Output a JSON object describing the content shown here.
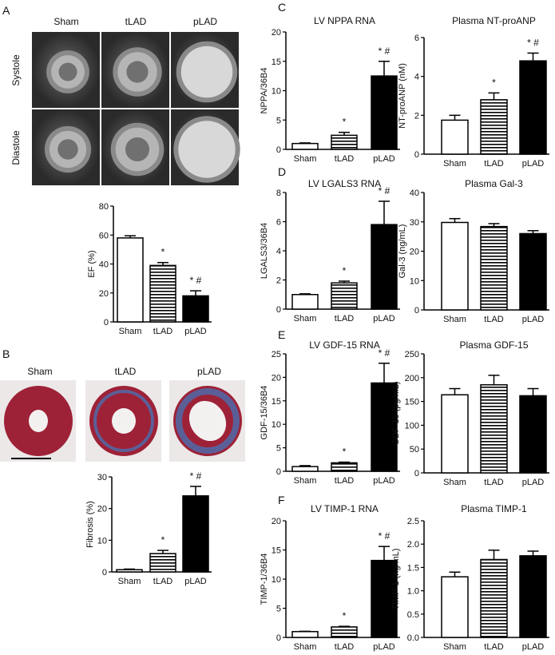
{
  "panel_letters": [
    "A",
    "B",
    "C",
    "D",
    "E",
    "F"
  ],
  "panel_a": {
    "columns": [
      "Sham",
      "tLAD",
      "pLAD"
    ],
    "rows": [
      "Systole",
      "Diastole"
    ]
  },
  "panel_b": {
    "columns": [
      "Sham",
      "tLAD",
      "pLAD"
    ]
  },
  "colors": {
    "sham": "#ffffff",
    "tlad_stripes": "#000000",
    "plad": "#000000",
    "mri_bg": "#3a3a3a",
    "tissue_red": "#9e2237",
    "fibrosis_blue": "#4a6fb0"
  },
  "chart_data": [
    {
      "type": "bar",
      "panel": "A",
      "title": "",
      "ylabel": "EF (%)",
      "ylim": [
        0,
        80
      ],
      "yticks": [
        "0",
        "20",
        "40",
        "60",
        "80"
      ],
      "categories": [
        "Sham",
        "tLAD",
        "pLAD"
      ],
      "values": [
        58,
        39,
        18
      ],
      "errors": [
        1.5,
        2,
        3.5
      ],
      "annotations": [
        "",
        "*",
        "* #"
      ]
    },
    {
      "type": "bar",
      "panel": "B",
      "title": "",
      "ylabel": "Fibrosis (%)",
      "ylim": [
        0,
        30
      ],
      "yticks": [
        "0",
        "10",
        "20",
        "30"
      ],
      "categories": [
        "Sham",
        "tLAD",
        "pLAD"
      ],
      "values": [
        0.7,
        5.8,
        24
      ],
      "errors": [
        0.2,
        1,
        3
      ],
      "annotations": [
        "",
        "*",
        "* #"
      ]
    },
    {
      "type": "bar",
      "panel": "C",
      "title": "LV NPPA RNA",
      "ylabel": "NPPA/36B4",
      "ylim": [
        0,
        20
      ],
      "yticks": [
        "0",
        "5",
        "10",
        "15",
        "20"
      ],
      "categories": [
        "Sham",
        "tLAD",
        "pLAD"
      ],
      "values": [
        1.0,
        2.4,
        12.5
      ],
      "errors": [
        0.1,
        0.5,
        2.5
      ],
      "annotations": [
        "",
        "*",
        "* #"
      ]
    },
    {
      "type": "bar",
      "panel": "C",
      "title": "Plasma NT-proANP",
      "ylabel": "NT-proANP (nM)",
      "ylim": [
        0,
        6
      ],
      "yticks": [
        "0",
        "2",
        "4",
        "6"
      ],
      "categories": [
        "Sham",
        "tLAD",
        "pLAD"
      ],
      "values": [
        1.75,
        2.8,
        4.8
      ],
      "errors": [
        0.25,
        0.35,
        0.4
      ],
      "annotations": [
        "",
        "*",
        "* #"
      ]
    },
    {
      "type": "bar",
      "panel": "D",
      "title": "LV  LGALS3 RNA",
      "ylabel": "LGALS3/36B4",
      "ylim": [
        0,
        8
      ],
      "yticks": [
        "0",
        "2",
        "4",
        "6",
        "8"
      ],
      "categories": [
        "Sham",
        "tLAD",
        "pLAD"
      ],
      "values": [
        1.0,
        1.8,
        5.8
      ],
      "errors": [
        0.05,
        0.12,
        1.6
      ],
      "annotations": [
        "",
        "*",
        "* #"
      ]
    },
    {
      "type": "bar",
      "panel": "D",
      "title": "Plasma Gal-3",
      "ylabel": "Gal-3 (ng/mL)",
      "ylim": [
        0,
        40
      ],
      "yticks": [
        "0",
        "10",
        "20",
        "30",
        "40"
      ],
      "categories": [
        "Sham",
        "tLAD",
        "pLAD"
      ],
      "values": [
        29.8,
        28.4,
        26
      ],
      "errors": [
        1.3,
        1,
        1
      ],
      "annotations": [
        "",
        "",
        ""
      ]
    },
    {
      "type": "bar",
      "panel": "E",
      "title": "LV GDF-15 RNA",
      "ylabel": "GDF-15/36B4",
      "ylim": [
        0,
        25
      ],
      "yticks": [
        "0",
        "5",
        "10",
        "15",
        "20",
        "25"
      ],
      "categories": [
        "Sham",
        "tLAD",
        "pLAD"
      ],
      "values": [
        1.0,
        1.8,
        18.8
      ],
      "errors": [
        0.2,
        0.15,
        4.2
      ],
      "annotations": [
        "",
        "*",
        "* #"
      ]
    },
    {
      "type": "bar",
      "panel": "E",
      "title": "Plasma GDF-15",
      "ylabel": "GDF-15 (pg/mL)",
      "ylim": [
        0,
        250
      ],
      "yticks": [
        "0",
        "50",
        "100",
        "150",
        "200",
        "250"
      ],
      "categories": [
        "Sham",
        "tLAD",
        "pLAD"
      ],
      "values": [
        164,
        185,
        162
      ],
      "errors": [
        13,
        20,
        15
      ],
      "annotations": [
        "",
        "",
        ""
      ]
    },
    {
      "type": "bar",
      "panel": "F",
      "title": "LV TIMP-1 RNA",
      "ylabel": "TIMP-1/36B4",
      "ylim": [
        0,
        20
      ],
      "yticks": [
        "0",
        "5",
        "10",
        "15",
        "20"
      ],
      "categories": [
        "Sham",
        "tLAD",
        "pLAD"
      ],
      "values": [
        1.0,
        1.8,
        13.2
      ],
      "errors": [
        0.05,
        0.1,
        2.4
      ],
      "annotations": [
        "",
        "*",
        "* #"
      ]
    },
    {
      "type": "bar",
      "panel": "F",
      "title": "Plasma TIMP-1",
      "ylabel": "TIMP-1 (ng/mL)",
      "ylim": [
        0,
        2.5
      ],
      "yticks": [
        "0.0",
        "0.5",
        "1.0",
        "1.5",
        "2.0",
        "2.5"
      ],
      "categories": [
        "Sham",
        "tLAD",
        "pLAD"
      ],
      "values": [
        1.3,
        1.67,
        1.75
      ],
      "errors": [
        0.1,
        0.2,
        0.1
      ],
      "annotations": [
        "",
        "",
        ""
      ]
    }
  ]
}
